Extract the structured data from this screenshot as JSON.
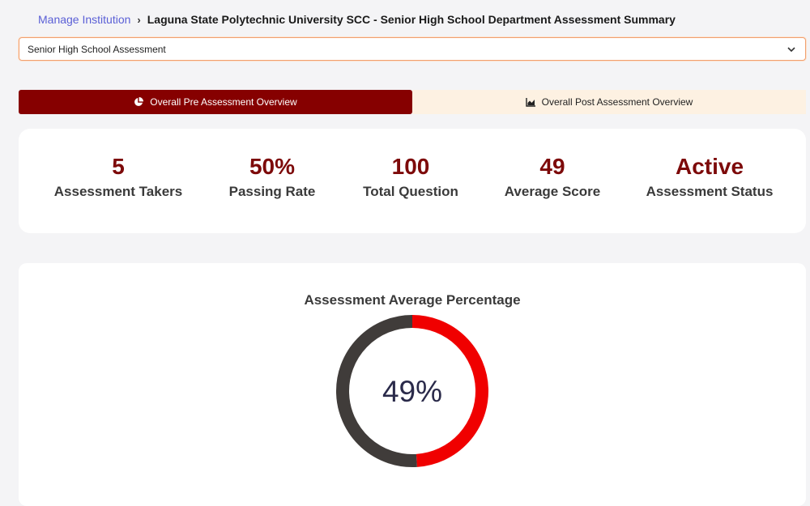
{
  "breadcrumb": {
    "link": "Manage Institution",
    "current": "Laguna State Polytechnic University SCC - Senior High School Department Assessment Summary"
  },
  "assessment_select": {
    "value": "Senior High School Assessment"
  },
  "tabs": [
    {
      "label": "Overall Pre Assessment Overview",
      "icon": "pie-chart-icon",
      "active": true
    },
    {
      "label": "Overall Post Assessment Overview",
      "icon": "area-chart-icon",
      "active": false
    }
  ],
  "stats": [
    {
      "value": "5",
      "label": "Assessment Takers"
    },
    {
      "value": "50%",
      "label": "Passing Rate"
    },
    {
      "value": "100",
      "label": "Total Question"
    },
    {
      "value": "49",
      "label": "Average Score"
    },
    {
      "value": "Active",
      "label": "Assessment Status"
    }
  ],
  "chart": {
    "title": "Assessment Average Percentage",
    "center_label": "49%"
  },
  "chart_data": {
    "type": "pie",
    "title": "Assessment Average Percentage",
    "values": [
      49,
      51
    ],
    "colors": [
      "#f00000",
      "#403c3a"
    ],
    "center_label": "49%"
  },
  "colors": {
    "accent": "#860000",
    "stat_value": "#7d0a0a",
    "link": "#5a5fd6",
    "inactive_tab": "#fdf1e2"
  }
}
